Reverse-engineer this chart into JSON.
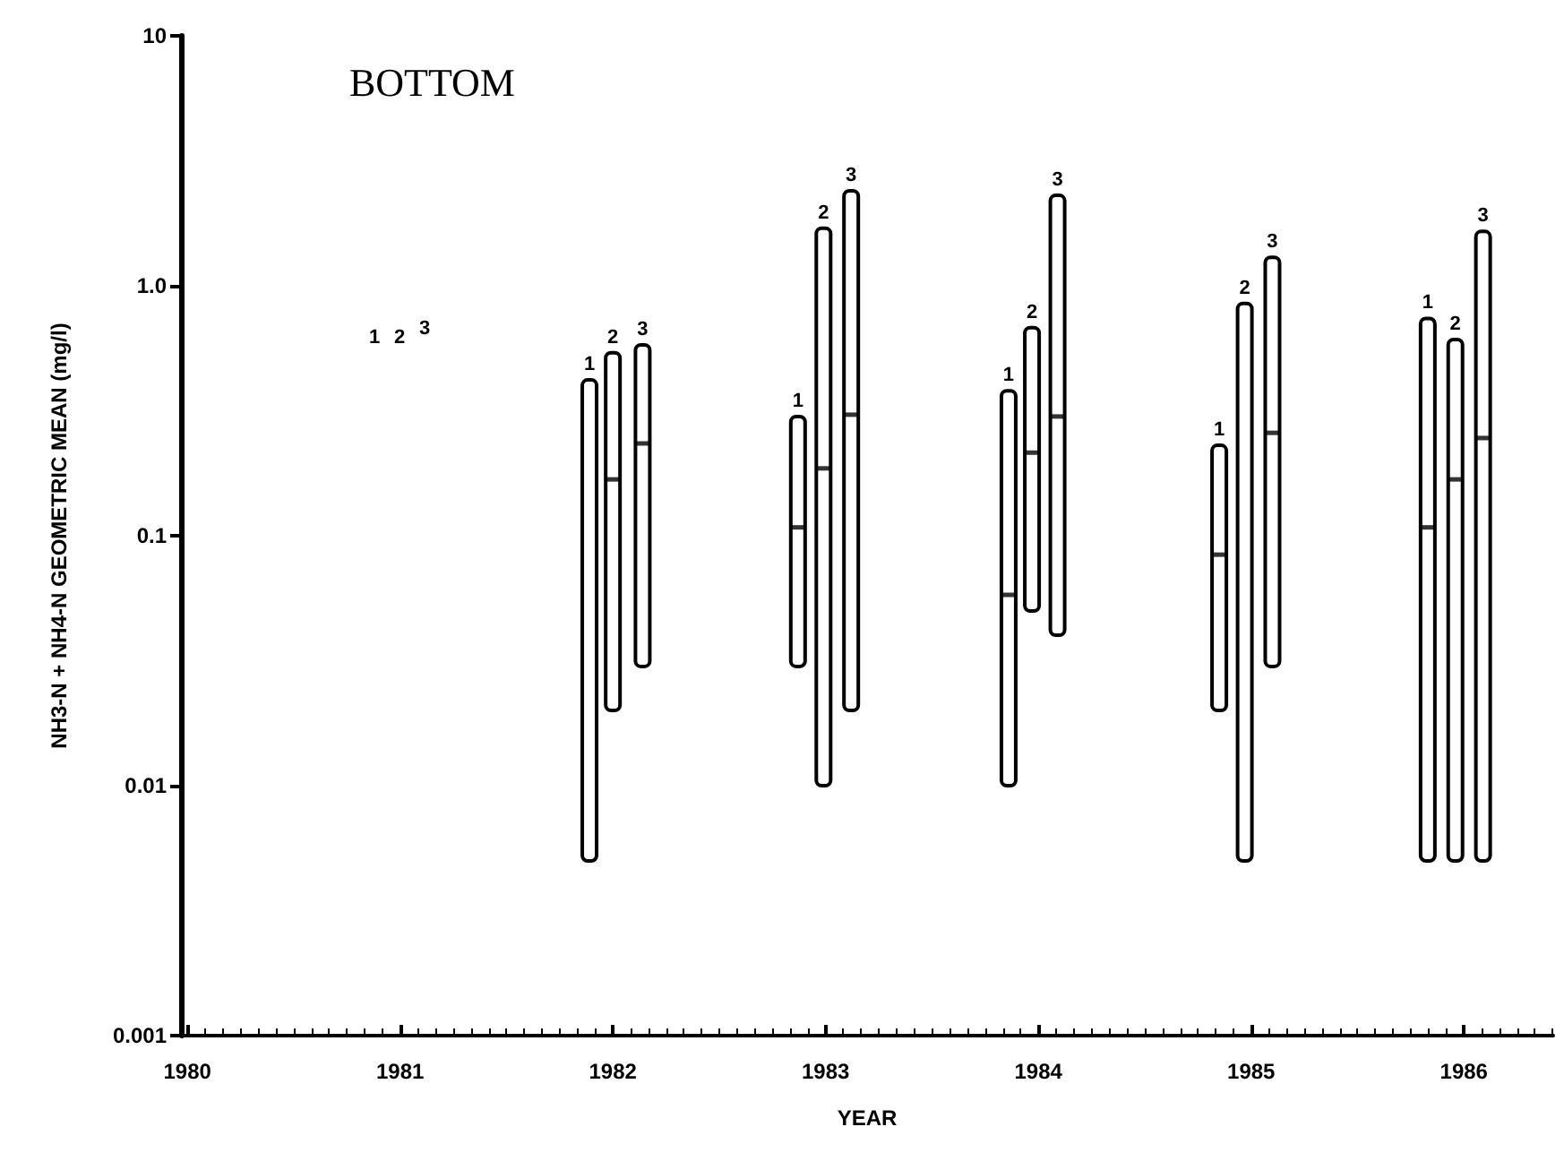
{
  "chart_data": {
    "type": "bar",
    "title": "BOTTOM",
    "xlabel": "YEAR",
    "ylabel": "NH3-N + NH4-N GEOMETRIC MEAN (mg/l)",
    "xlim": [
      1979.97,
      1986.42
    ],
    "xticks": [
      1980,
      1981,
      1982,
      1983,
      1984,
      1985,
      1986
    ],
    "ylim": [
      0.001,
      10
    ],
    "yticks": [
      {
        "value": 0.001,
        "label": "0.001"
      },
      {
        "value": 0.01,
        "label": "0.01"
      },
      {
        "value": 0.1,
        "label": "0.1"
      },
      {
        "value": 1,
        "label": "1.0"
      },
      {
        "value": 10,
        "label": "10"
      }
    ],
    "log": "y",
    "grid": false,
    "legend": false,
    "series": [
      {
        "name": "1",
        "color": "#000000",
        "x": [
          1981.89,
          1982.87,
          1983.86,
          1984.85,
          1985.83
        ],
        "base": [
          0.005,
          0.03,
          0.01,
          0.02,
          0.005
        ],
        "values": [
          0.415,
          0.27,
          0.37,
          0.21,
          0.735
        ]
      },
      {
        "name": "2",
        "color": "#000000",
        "x": [
          1982.0,
          1982.99,
          1983.97,
          1984.97,
          1985.96
        ],
        "base": [
          0.02,
          0.01,
          0.05,
          0.005,
          0.005
        ],
        "values": [
          0.52,
          1.69,
          0.63,
          0.845,
          0.605
        ]
      },
      {
        "name": "3",
        "color": "#000000",
        "x": [
          1982.14,
          1983.12,
          1984.09,
          1985.1,
          1986.09
        ],
        "base": [
          0.03,
          0.02,
          0.04,
          0.03,
          0.005
        ],
        "values": [
          0.55,
          2.38,
          2.26,
          1.27,
          1.645
        ]
      },
      {
        "type": "scatter",
        "color": "#000000",
        "x": [
          1982.87,
          1983.86,
          1984.85,
          1985.83,
          1982.0,
          1982.99,
          1983.97,
          1985.96,
          1982.14,
          1983.12,
          1984.09,
          1985.1,
          1986.09
        ],
        "values": [
          0.108,
          0.058,
          0.084,
          0.108,
          0.168,
          0.186,
          0.215,
          0.168,
          0.234,
          0.305,
          0.3,
          0.258,
          0.246
        ]
      }
    ],
    "annotations": [
      "1",
      "2",
      "3"
    ]
  }
}
